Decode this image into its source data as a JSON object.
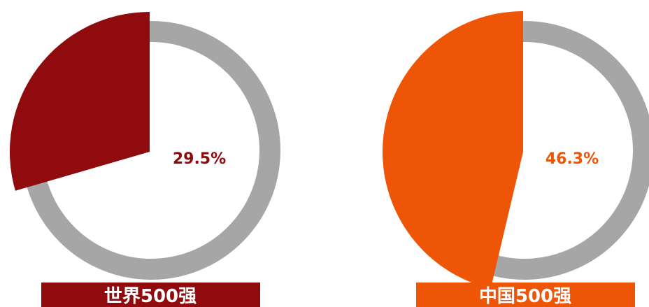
{
  "chart_data": [
    {
      "type": "pie",
      "label": "世界500强",
      "value_text": "29.5%",
      "value": 29.5,
      "remainder": 70.5,
      "color": "#8f0b0e",
      "ring_color": "#a6a6a6"
    },
    {
      "type": "pie",
      "label": "中国500强",
      "value_text": "46.3%",
      "value": 46.3,
      "remainder": 53.7,
      "color": "#ee5507",
      "ring_color": "#a6a6a6"
    }
  ]
}
